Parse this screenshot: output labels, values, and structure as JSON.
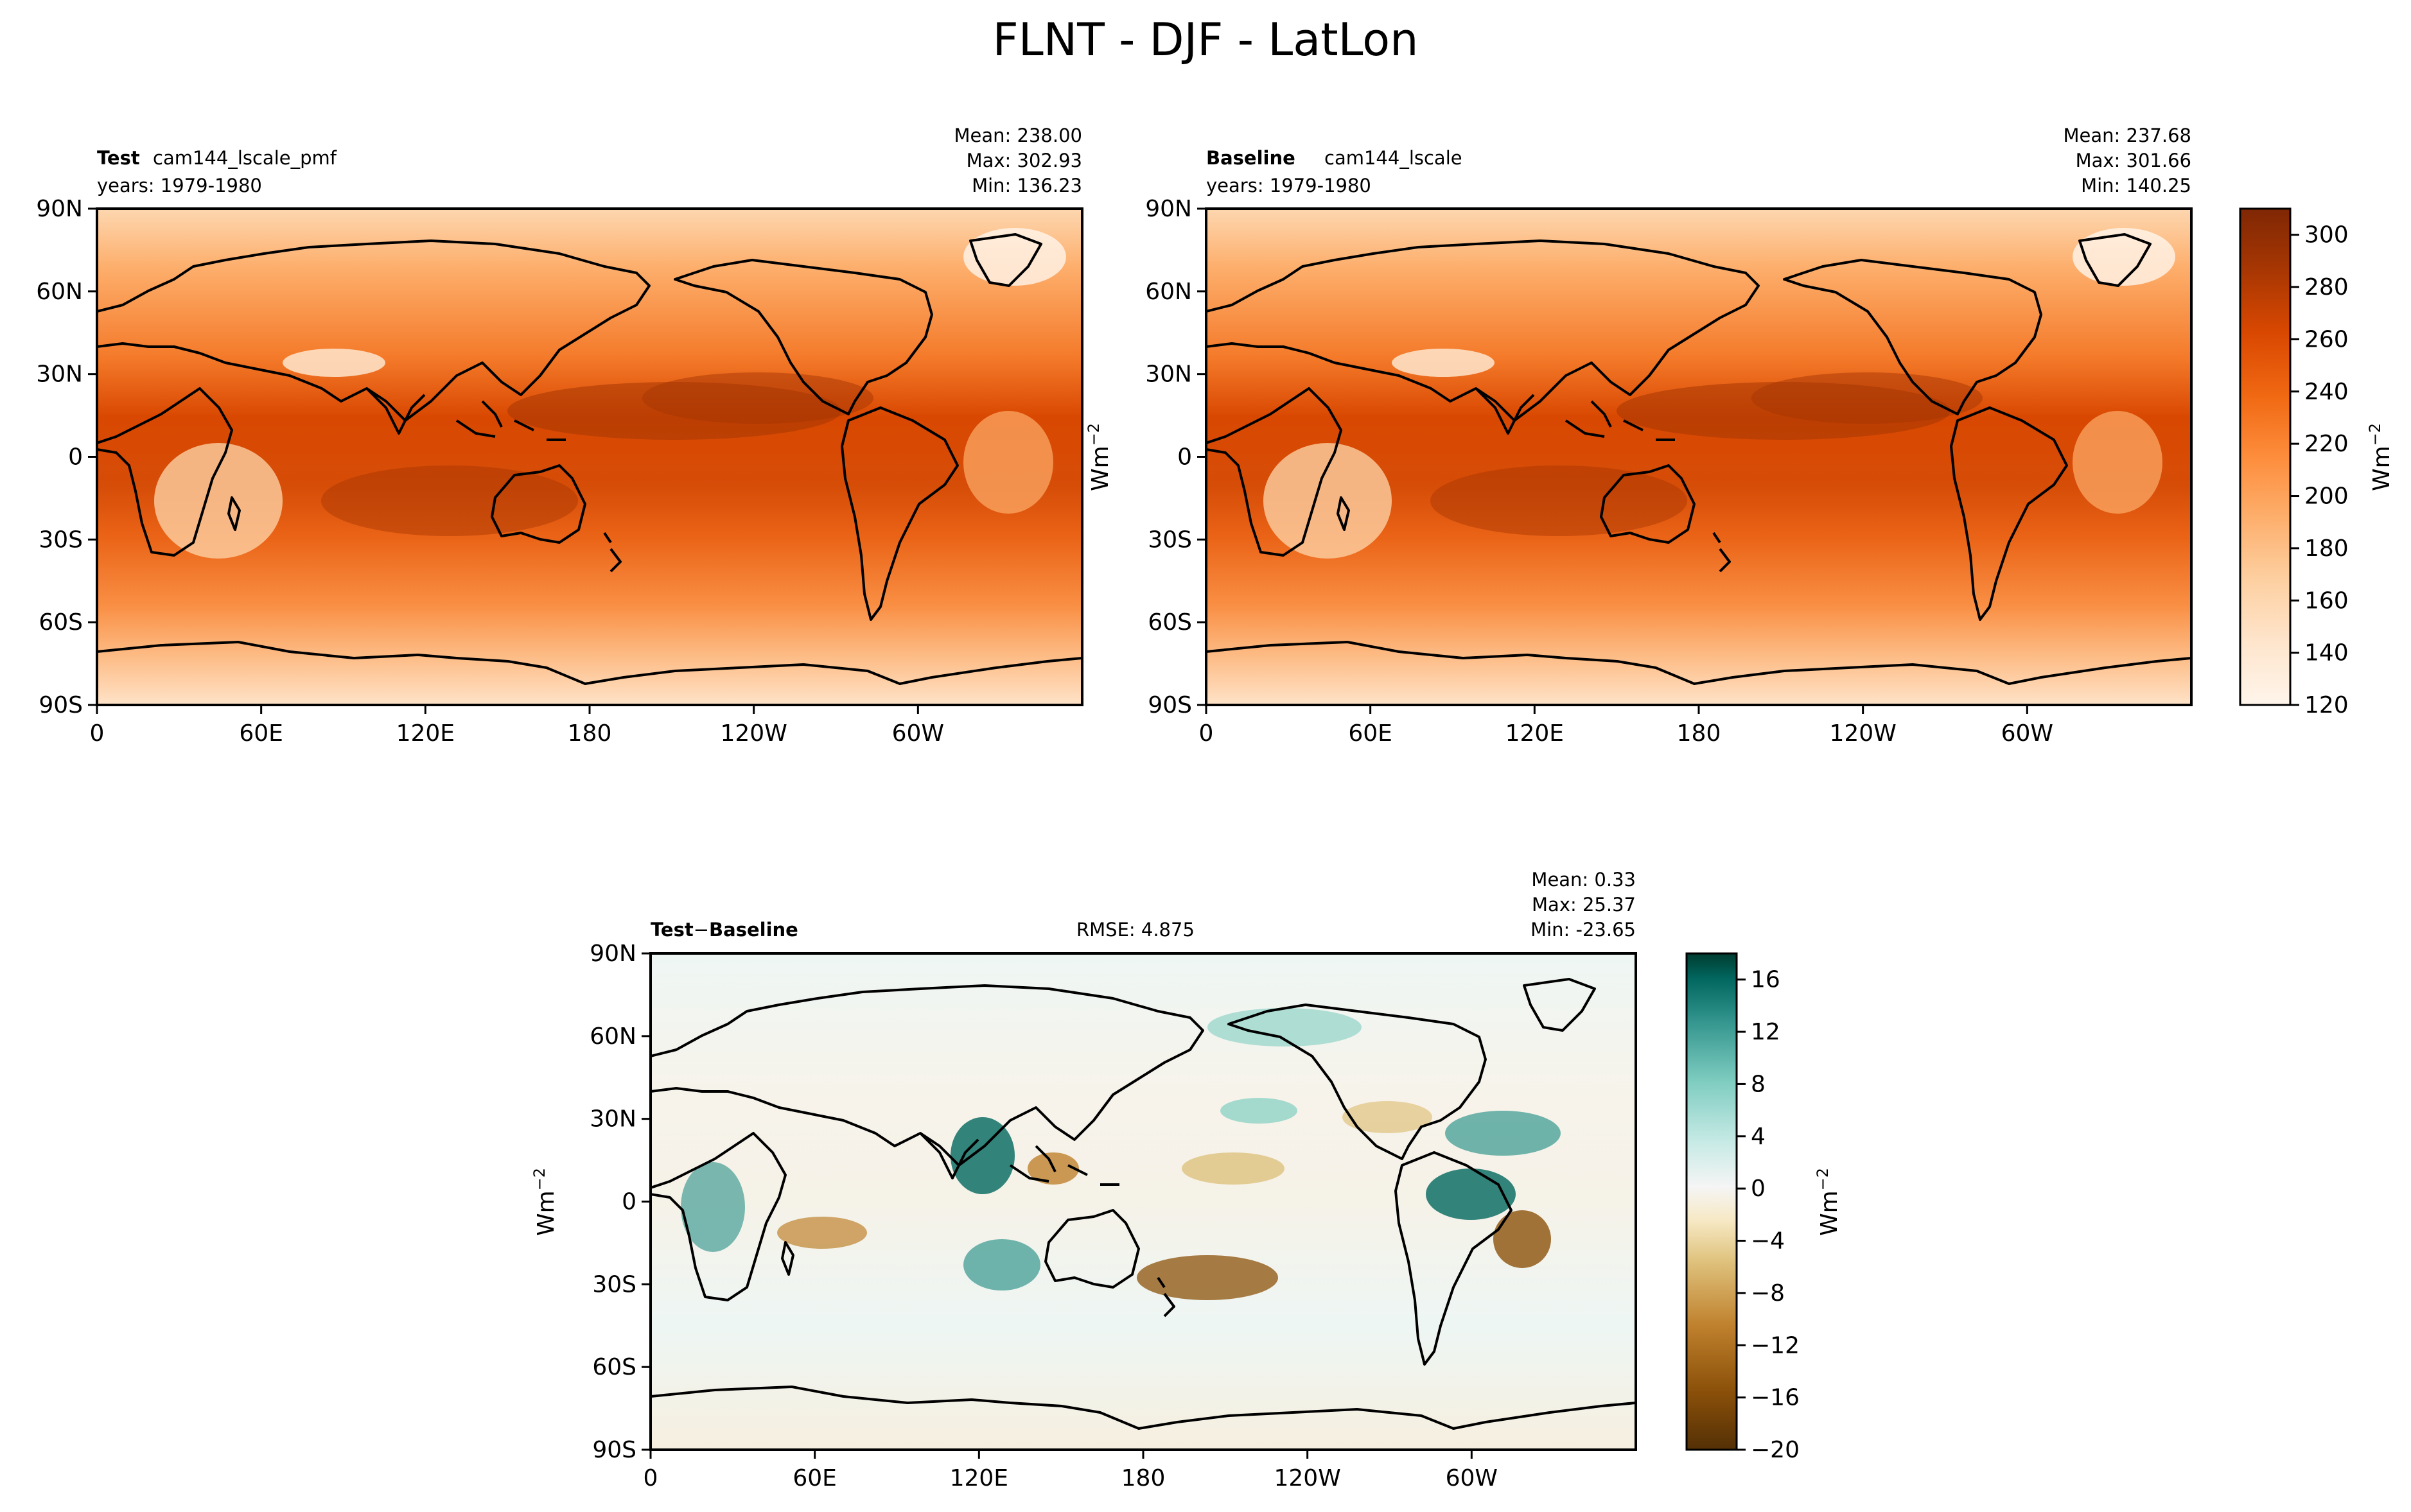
{
  "figure": {
    "title": "FLNT - DJF - LatLon"
  },
  "chart_data": [
    {
      "type": "heatmap",
      "panel": "test",
      "label_bold": "Test",
      "label_name": "cam144_lscale_pmf",
      "years": "years: 1979-1980",
      "stats": {
        "mean": "Mean: 238.00",
        "max": "Max: 302.93",
        "min": "Min: 136.23"
      },
      "x_ticks": [
        "0",
        "60E",
        "120E",
        "180",
        "120W",
        "60W"
      ],
      "y_ticks": [
        "90N",
        "60N",
        "30N",
        "0",
        "30S",
        "60S",
        "90S"
      ],
      "value_range": [
        120,
        310
      ],
      "units": "Wm",
      "units_exp": "−2"
    },
    {
      "type": "heatmap",
      "panel": "baseline",
      "label_bold": "Baseline",
      "label_name": "cam144_lscale",
      "years": "years: 1979-1980",
      "stats": {
        "mean": "Mean: 237.68",
        "max": "Max: 301.66",
        "min": "Min: 140.25"
      },
      "x_ticks": [
        "0",
        "60E",
        "120E",
        "180",
        "120W",
        "60W"
      ],
      "y_ticks": [
        "90N",
        "60N",
        "30N",
        "0",
        "30S",
        "60S",
        "90S"
      ],
      "value_range": [
        120,
        310
      ],
      "units": "Wm",
      "units_exp": "−2",
      "colorbar": {
        "ticks": [
          "120",
          "140",
          "160",
          "180",
          "200",
          "220",
          "240",
          "260",
          "280",
          "300"
        ]
      }
    },
    {
      "type": "heatmap",
      "panel": "difference",
      "label_a": "Test",
      "label_b": "Baseline",
      "minus": "−",
      "rmse": "RMSE: 4.875",
      "stats": {
        "mean": "Mean:  0.33",
        "max": "Max: 25.37",
        "min": "Min: -23.65"
      },
      "x_ticks": [
        "0",
        "60E",
        "120E",
        "180",
        "120W",
        "60W"
      ],
      "y_ticks": [
        "90N",
        "60N",
        "30N",
        "0",
        "30S",
        "60S",
        "90S"
      ],
      "value_range": [
        -20,
        18
      ],
      "units": "Wm",
      "units_exp": "−2",
      "colorbar": {
        "ticks": [
          "16",
          "12",
          "8",
          "4",
          "0",
          "−4",
          "−8",
          "−12",
          "−16",
          "−20"
        ]
      }
    }
  ],
  "colors": {
    "sequential": [
      "#fff5eb",
      "#fee6ce",
      "#fdd0a2",
      "#fdae6b",
      "#fd8d3c",
      "#f16913",
      "#d94801",
      "#a63603",
      "#7f2704"
    ],
    "diverging_neg": [
      "#543005",
      "#8c510a",
      "#bf812d",
      "#dfc27d",
      "#f6e8c3",
      "#f5f5f5"
    ],
    "diverging_pos": [
      "#f5f5f5",
      "#c7eae5",
      "#80cdc1",
      "#35978f",
      "#01665e",
      "#003c30"
    ],
    "coast": "#000000"
  }
}
